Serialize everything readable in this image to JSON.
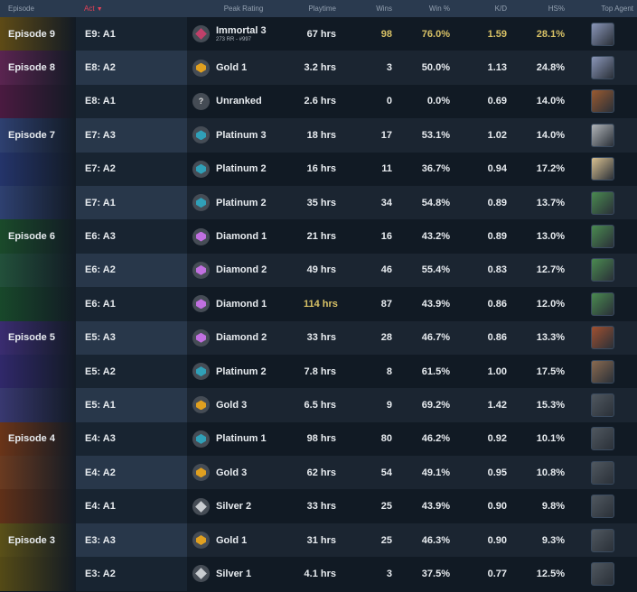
{
  "headers": {
    "episode": "Episode",
    "act": "Act",
    "sort_icon": "caret-down-icon",
    "peak": "Peak Rating",
    "playtime": "Playtime",
    "wins": "Wins",
    "winpct": "Win %",
    "kd": "K/D",
    "hs": "HS%",
    "agent": "Top Agent"
  },
  "colors": {
    "highlight": "#d9c266",
    "sort": "#e84057"
  },
  "rows": [
    {
      "episode": "Episode 9",
      "ep_color": "#5e4b16",
      "act": "E9: A1",
      "rank": "Immortal 3",
      "rank_sub": "273 RR - #997",
      "rank_color": "#c0406a",
      "playtime": "67 hrs",
      "wins": "98",
      "winpct": "76.0%",
      "kd": "1.59",
      "hs": "28.1%",
      "hl": [
        "wins",
        "winpct",
        "kd",
        "hs"
      ],
      "agent_color": "#8a96b8"
    },
    {
      "episode": "Episode 8",
      "ep_color": "#5a2450",
      "act": "E8: A2",
      "rank": "Gold 1",
      "rank_color": "#e0a020",
      "playtime": "3.2 hrs",
      "wins": "3",
      "winpct": "50.0%",
      "kd": "1.13",
      "hs": "24.8%",
      "hl": [],
      "agent_color": "#8a96b8"
    },
    {
      "episode": "",
      "ep_color": "#4a1a40",
      "act": "E8: A1",
      "rank": "Unranked",
      "rank_color": "#9aa0a8",
      "playtime": "2.6 hrs",
      "wins": "0",
      "winpct": "0.0%",
      "kd": "0.69",
      "hs": "14.0%",
      "hl": [],
      "agent_color": "#9a5a30"
    },
    {
      "episode": "Episode 7",
      "ep_color": "#2e4070",
      "act": "E7: A3",
      "rank": "Platinum 3",
      "rank_color": "#30a0b8",
      "playtime": "18 hrs",
      "wins": "17",
      "winpct": "53.1%",
      "kd": "1.02",
      "hs": "14.0%",
      "hl": [],
      "agent_color": "#b0b4b8"
    },
    {
      "episode": "",
      "ep_color": "#24346a",
      "act": "E7: A2",
      "rank": "Platinum 2",
      "rank_color": "#30a0b8",
      "playtime": "16 hrs",
      "wins": "11",
      "winpct": "36.7%",
      "kd": "0.94",
      "hs": "17.2%",
      "hl": [],
      "agent_color": "#d8c090"
    },
    {
      "episode": "",
      "ep_color": "#2e4070",
      "act": "E7: A1",
      "rank": "Platinum 2",
      "rank_color": "#30a0b8",
      "playtime": "35 hrs",
      "wins": "34",
      "winpct": "54.8%",
      "kd": "0.89",
      "hs": "13.7%",
      "hl": [],
      "agent_color": "#4a8a50"
    },
    {
      "episode": "Episode 6",
      "ep_color": "#1a4a2a",
      "act": "E6: A3",
      "rank": "Diamond 1",
      "rank_color": "#c070e0",
      "playtime": "21 hrs",
      "wins": "16",
      "winpct": "43.2%",
      "kd": "0.89",
      "hs": "13.0%",
      "hl": [],
      "agent_color": "#4a8a50"
    },
    {
      "episode": "",
      "ep_color": "#22503a",
      "act": "E6: A2",
      "rank": "Diamond 2",
      "rank_color": "#c070e0",
      "playtime": "49 hrs",
      "wins": "46",
      "winpct": "55.4%",
      "kd": "0.83",
      "hs": "12.7%",
      "hl": [],
      "agent_color": "#4a8a50"
    },
    {
      "episode": "",
      "ep_color": "#18482a",
      "act": "E6: A1",
      "rank": "Diamond 1",
      "rank_color": "#c070e0",
      "playtime": "114 hrs",
      "wins": "87",
      "winpct": "43.9%",
      "kd": "0.86",
      "hs": "12.0%",
      "hl": [
        "playtime"
      ],
      "agent_color": "#4a8a50"
    },
    {
      "episode": "Episode 5",
      "ep_color": "#3a2c70",
      "act": "E5: A3",
      "rank": "Diamond 2",
      "rank_color": "#c070e0",
      "playtime": "33 hrs",
      "wins": "28",
      "winpct": "46.7%",
      "kd": "0.86",
      "hs": "13.3%",
      "hl": [],
      "agent_color": "#a05030"
    },
    {
      "episode": "",
      "ep_color": "#30286a",
      "act": "E5: A2",
      "rank": "Platinum 2",
      "rank_color": "#30a0b8",
      "playtime": "7.8 hrs",
      "wins": "8",
      "winpct": "61.5%",
      "kd": "1.00",
      "hs": "17.5%",
      "hl": [],
      "agent_color": "#8a6a50"
    },
    {
      "episode": "",
      "ep_color": "#383870",
      "act": "E5: A1",
      "rank": "Gold 3",
      "rank_color": "#e0a020",
      "playtime": "6.5 hrs",
      "wins": "9",
      "winpct": "69.2%",
      "kd": "1.42",
      "hs": "15.3%",
      "hl": [],
      "agent_color": "#505860"
    },
    {
      "episode": "Episode 4",
      "ep_color": "#6a3418",
      "act": "E4: A3",
      "rank": "Platinum 1",
      "rank_color": "#30a0b8",
      "playtime": "98 hrs",
      "wins": "80",
      "winpct": "46.2%",
      "kd": "0.92",
      "hs": "10.1%",
      "hl": [],
      "agent_color": "#505860"
    },
    {
      "episode": "",
      "ep_color": "#6a3a20",
      "act": "E4: A2",
      "rank": "Gold 3",
      "rank_color": "#e0a020",
      "playtime": "62 hrs",
      "wins": "54",
      "winpct": "49.1%",
      "kd": "0.95",
      "hs": "10.8%",
      "hl": [],
      "agent_color": "#505860"
    },
    {
      "episode": "",
      "ep_color": "#603018",
      "act": "E4: A1",
      "rank": "Silver 2",
      "rank_color": "#c8ccd0",
      "playtime": "33 hrs",
      "wins": "25",
      "winpct": "43.9%",
      "kd": "0.90",
      "hs": "9.8%",
      "hl": [],
      "agent_color": "#505860"
    },
    {
      "episode": "Episode 3",
      "ep_color": "#5a5018",
      "act": "E3: A3",
      "rank": "Gold 1",
      "rank_color": "#e0a020",
      "playtime": "31 hrs",
      "wins": "25",
      "winpct": "46.3%",
      "kd": "0.90",
      "hs": "9.3%",
      "hl": [],
      "agent_color": "#505860"
    },
    {
      "episode": "",
      "ep_color": "#544a16",
      "act": "E3: A2",
      "rank": "Silver 1",
      "rank_color": "#c8ccd0",
      "playtime": "4.1 hrs",
      "wins": "3",
      "winpct": "37.5%",
      "kd": "0.77",
      "hs": "12.5%",
      "hl": [],
      "agent_color": "#505860"
    }
  ]
}
